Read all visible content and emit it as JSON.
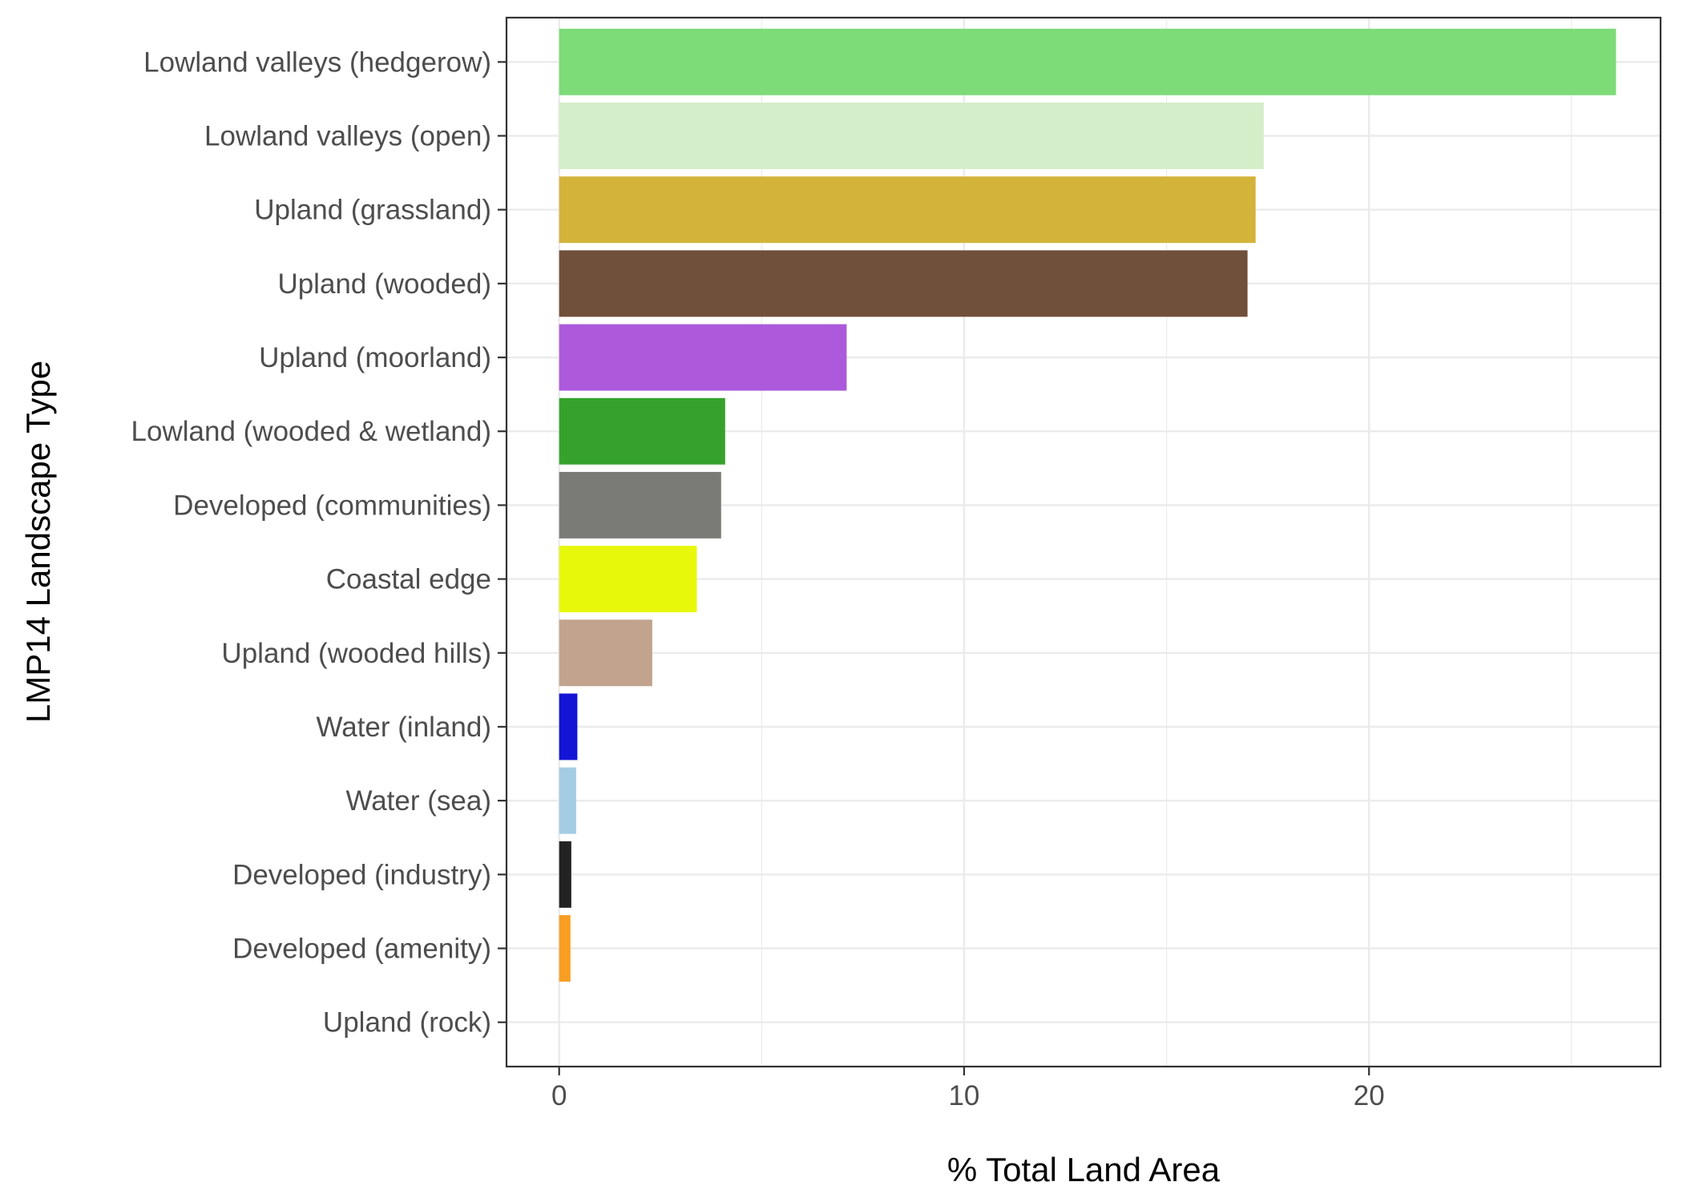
{
  "chart_data": {
    "type": "bar",
    "orientation": "horizontal",
    "title": "",
    "xlabel": "% Total Land Area",
    "ylabel": "LMP14 Landscape Type",
    "xlim": [
      -1.3,
      27.2
    ],
    "xticks": [
      0,
      10,
      20
    ],
    "grid": true,
    "legend": "none",
    "categories": [
      "Lowland valleys (hedgerow)",
      "Lowland valleys (open)",
      "Upland (grassland)",
      "Upland (wooded)",
      "Upland (moorland)",
      "Lowland (wooded & wetland)",
      "Developed (communities)",
      "Coastal edge",
      "Upland (wooded hills)",
      "Water (inland)",
      "Water (sea)",
      "Developed (industry)",
      "Developed (amenity)",
      "Upland (rock)"
    ],
    "values": [
      26.1,
      17.4,
      17.2,
      17.0,
      7.1,
      4.1,
      4.0,
      3.4,
      2.3,
      0.45,
      0.42,
      0.3,
      0.28,
      0.0
    ],
    "colors": [
      "#7ddb78",
      "#d4eec9",
      "#d4b33a",
      "#704f3b",
      "#ac59dc",
      "#36a22c",
      "#7a7b76",
      "#e8f80b",
      "#c2a48e",
      "#1414d6",
      "#a4cde4",
      "#222222",
      "#f89e22",
      "#cccccc"
    ]
  }
}
